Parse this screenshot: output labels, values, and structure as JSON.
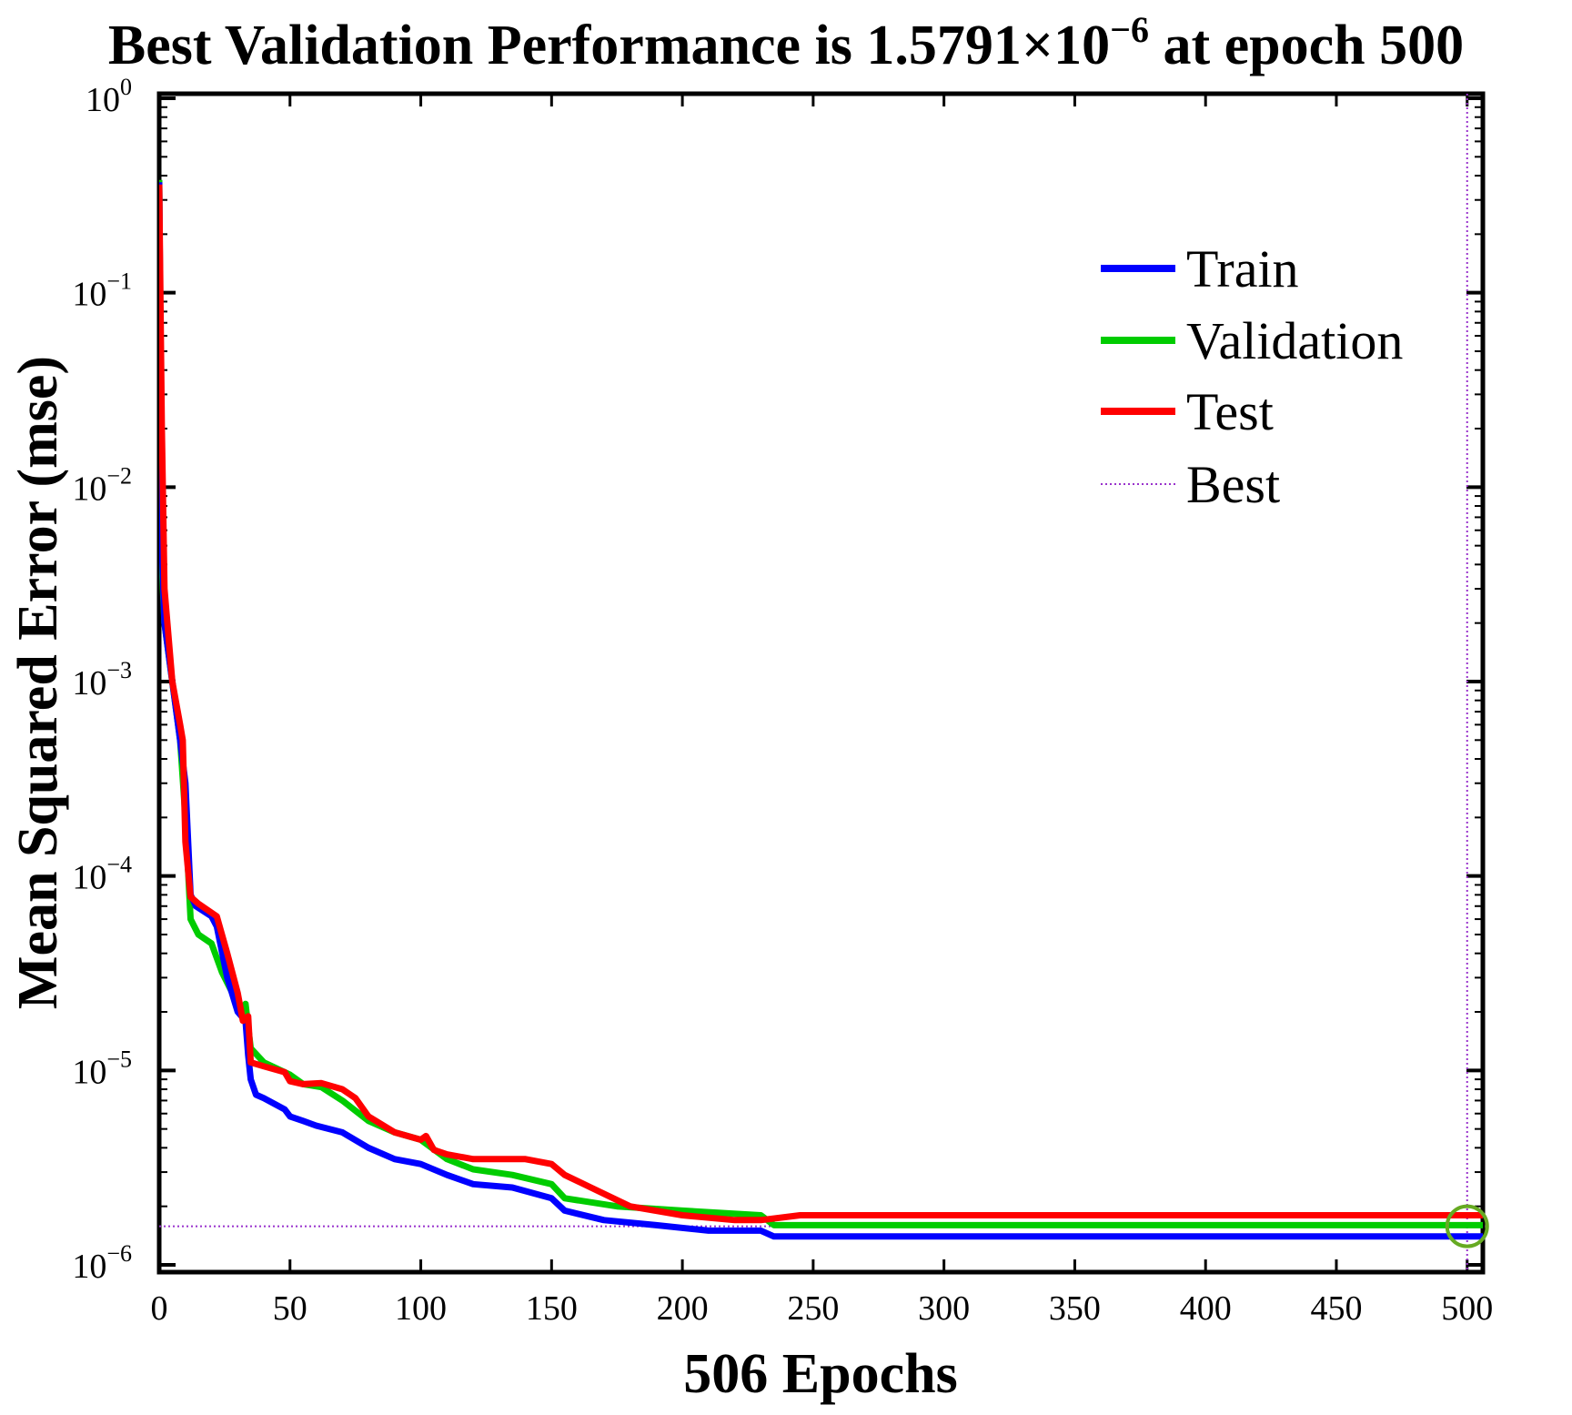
{
  "chart_data": {
    "type": "line",
    "title_prefix": "Best Validation Performance is  1.5791×10",
    "title_exponent": "−6",
    "title_suffix": " at epoch 500",
    "xlabel": "506 Epochs",
    "ylabel": "Mean Squared Error (mse)",
    "xscale": "linear",
    "yscale": "log",
    "xlim": [
      0,
      506
    ],
    "ylim_exponents": [
      -6,
      0
    ],
    "x_ticks": [
      "0",
      "50",
      "100",
      "150",
      "200",
      "250",
      "300",
      "350",
      "400",
      "450",
      "500"
    ],
    "y_ticks": [
      {
        "base": "10",
        "exp": "0"
      },
      {
        "base": "10",
        "exp": "−1"
      },
      {
        "base": "10",
        "exp": "−2"
      },
      {
        "base": "10",
        "exp": "−3"
      },
      {
        "base": "10",
        "exp": "−4"
      },
      {
        "base": "10",
        "exp": "−5"
      },
      {
        "base": "10",
        "exp": "−6"
      }
    ],
    "legend_position": "top-right",
    "series": [
      {
        "name": "Train",
        "color": "#0000ff",
        "style": "solid",
        "points": [
          [
            0,
            0.37
          ],
          [
            1,
            0.005
          ],
          [
            2,
            0.002
          ],
          [
            5,
            0.001
          ],
          [
            8,
            0.0005
          ],
          [
            10,
            0.0003
          ],
          [
            12,
            8e-05
          ],
          [
            14,
            7e-05
          ],
          [
            20,
            6.2e-05
          ],
          [
            22,
            5.5e-05
          ],
          [
            26,
            3e-05
          ],
          [
            30,
            2e-05
          ],
          [
            33,
            1.8e-05
          ],
          [
            34,
            1.2e-05
          ],
          [
            35,
            9e-06
          ],
          [
            37,
            7.5e-06
          ],
          [
            40,
            7.2e-06
          ],
          [
            48,
            6.3e-06
          ],
          [
            50,
            5.8e-06
          ],
          [
            55,
            5.5e-06
          ],
          [
            60,
            5.2e-06
          ],
          [
            70,
            4.8e-06
          ],
          [
            80,
            4e-06
          ],
          [
            90,
            3.5e-06
          ],
          [
            100,
            3.3e-06
          ],
          [
            110,
            2.9e-06
          ],
          [
            120,
            2.6e-06
          ],
          [
            135,
            2.5e-06
          ],
          [
            150,
            2.2e-06
          ],
          [
            155,
            1.9e-06
          ],
          [
            170,
            1.7e-06
          ],
          [
            190,
            1.6e-06
          ],
          [
            210,
            1.5e-06
          ],
          [
            230,
            1.5e-06
          ],
          [
            235,
            1.4e-06
          ],
          [
            260,
            1.4e-06
          ],
          [
            300,
            1.4e-06
          ],
          [
            400,
            1.4e-06
          ],
          [
            506,
            1.4e-06
          ]
        ]
      },
      {
        "name": "Validation",
        "color": "#00cc00",
        "style": "solid",
        "points": [
          [
            0,
            0.38
          ],
          [
            1,
            0.004
          ],
          [
            2,
            0.002
          ],
          [
            5,
            0.001
          ],
          [
            8,
            0.0005
          ],
          [
            10,
            0.0002
          ],
          [
            12,
            6e-05
          ],
          [
            15,
            5e-05
          ],
          [
            20,
            4.5e-05
          ],
          [
            24,
            3.2e-05
          ],
          [
            28,
            2.5e-05
          ],
          [
            31,
            2e-05
          ],
          [
            33,
            2.2e-05
          ],
          [
            35,
            1.3e-05
          ],
          [
            40,
            1.1e-05
          ],
          [
            50,
            9.5e-06
          ],
          [
            55,
            8.5e-06
          ],
          [
            62,
            8.2e-06
          ],
          [
            70,
            7e-06
          ],
          [
            80,
            5.5e-06
          ],
          [
            90,
            4.8e-06
          ],
          [
            100,
            4.4e-06
          ],
          [
            110,
            3.5e-06
          ],
          [
            120,
            3.1e-06
          ],
          [
            135,
            2.9e-06
          ],
          [
            150,
            2.6e-06
          ],
          [
            155,
            2.2e-06
          ],
          [
            175,
            2e-06
          ],
          [
            200,
            1.9e-06
          ],
          [
            230,
            1.8e-06
          ],
          [
            235,
            1.6e-06
          ],
          [
            300,
            1.6e-06
          ],
          [
            400,
            1.6e-06
          ],
          [
            506,
            1.6e-06
          ]
        ]
      },
      {
        "name": "Test",
        "color": "#ff0000",
        "style": "solid",
        "points": [
          [
            0,
            0.36
          ],
          [
            1,
            0.02
          ],
          [
            2,
            0.003
          ],
          [
            5,
            0.001
          ],
          [
            8,
            0.0006
          ],
          [
            9,
            0.0005
          ],
          [
            10,
            0.00015
          ],
          [
            12,
            7.8e-05
          ],
          [
            15,
            7.2e-05
          ],
          [
            22,
            6.2e-05
          ],
          [
            26,
            4e-05
          ],
          [
            30,
            2.5e-05
          ],
          [
            32,
            1.8e-05
          ],
          [
            34,
            1.9e-05
          ],
          [
            35,
            1.1e-05
          ],
          [
            40,
            1.05e-05
          ],
          [
            48,
            9.8e-06
          ],
          [
            50,
            8.8e-06
          ],
          [
            55,
            8.5e-06
          ],
          [
            62,
            8.6e-06
          ],
          [
            70,
            8e-06
          ],
          [
            75,
            7.2e-06
          ],
          [
            80,
            5.8e-06
          ],
          [
            90,
            4.8e-06
          ],
          [
            100,
            4.4e-06
          ],
          [
            102,
            4.6e-06
          ],
          [
            105,
            3.9e-06
          ],
          [
            110,
            3.7e-06
          ],
          [
            120,
            3.5e-06
          ],
          [
            140,
            3.5e-06
          ],
          [
            150,
            3.3e-06
          ],
          [
            155,
            2.9e-06
          ],
          [
            165,
            2.5e-06
          ],
          [
            180,
            2e-06
          ],
          [
            200,
            1.8e-06
          ],
          [
            220,
            1.7e-06
          ],
          [
            230,
            1.7e-06
          ],
          [
            245,
            1.8e-06
          ],
          [
            300,
            1.8e-06
          ],
          [
            400,
            1.8e-06
          ],
          [
            506,
            1.8e-06
          ]
        ]
      },
      {
        "name": "Best",
        "color": "#9932cc",
        "style": "dotted",
        "best_epoch": 500,
        "best_value": 1.5791e-06
      }
    ]
  }
}
